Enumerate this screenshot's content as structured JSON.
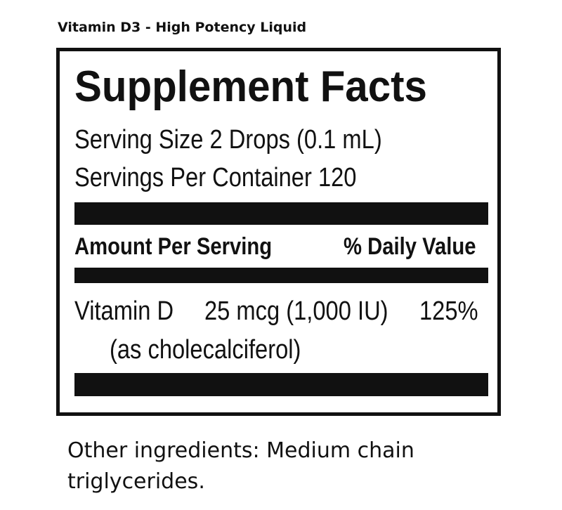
{
  "product_title": "Vitamin D3 - High Potency Liquid",
  "label": {
    "heading": "Supplement Facts",
    "serving_size": "Serving Size 2 Drops (0.1 mL)",
    "servings_per_container": "Servings Per Container 120",
    "amount_header": "Amount Per Serving",
    "dv_header": "% Daily Value",
    "nutrients": [
      {
        "name": "Vitamin D",
        "amount": "25 mcg (1,000 IU)",
        "dv": "125%",
        "form": "(as cholecalciferol)"
      }
    ]
  },
  "other_ingredients": [
    "Other ingredients: Medium chain",
    "triglycerides."
  ]
}
